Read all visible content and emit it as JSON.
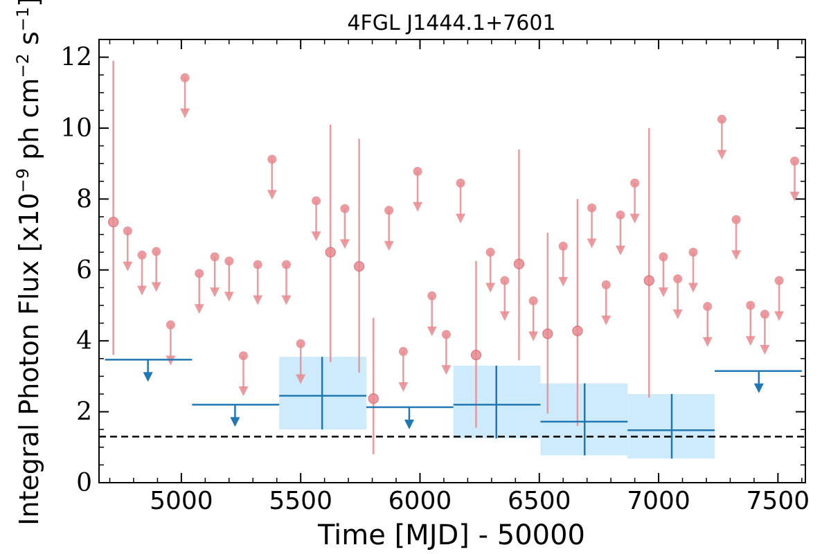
{
  "chart_data": {
    "type": "scatter",
    "title": "4FGL J1444.1+7601",
    "xlabel": "Time [MJD] - 50000",
    "ylabel": "Integral Photon Flux [x10^-9 ph cm^-2 s^-1]",
    "ylabel_parts": {
      "prefix": "Integral Photon Flux [x10",
      "exp1": "−9",
      "mid": " ph cm",
      "exp2": "−2",
      "mid2": " s",
      "exp3": "−1",
      "suffix": "]"
    },
    "xlim": [
      4655,
      7615
    ],
    "ylim": [
      0,
      12.5
    ],
    "xticks": [
      5000,
      5500,
      6000,
      6500,
      7000,
      7500
    ],
    "yticks": [
      0,
      2,
      4,
      6,
      8,
      10,
      12
    ],
    "grid": false,
    "reference_line": {
      "y": 1.3,
      "style": "dashed",
      "color": "#000000"
    },
    "colors": {
      "short_bins": "#e88a8f",
      "long_bins": "#1f77b4",
      "long_bins_band": "#cdebfb"
    },
    "series": [
      {
        "points": [
          {
            "x": 4715,
            "y": 7.35,
            "yerr_low": 3.6,
            "yerr_high": 11.9
          },
          {
            "x": 5625,
            "y": 6.5,
            "yerr_low": 3.4,
            "yerr_high": 10.1
          },
          {
            "x": 5745,
            "y": 6.1,
            "yerr_low": 3.1,
            "yerr_high": 9.7
          },
          {
            "x": 5805,
            "y": 2.37,
            "yerr_low": 0.8,
            "yerr_high": 4.65
          },
          {
            "x": 6235,
            "y": 3.6,
            "yerr_low": 1.55,
            "yerr_high": 6.25
          },
          {
            "x": 6415,
            "y": 6.17,
            "yerr_low": 3.45,
            "yerr_high": 9.4
          },
          {
            "x": 6535,
            "y": 4.2,
            "yerr_low": 1.95,
            "yerr_high": 7.05
          },
          {
            "x": 6660,
            "y": 4.28,
            "yerr_low": 1.6,
            "yerr_high": 8.0
          },
          {
            "x": 6960,
            "y": 5.7,
            "yerr_low": 2.4,
            "yerr_high": 10.0
          }
        ],
        "upper_limits": [
          {
            "x": 4775,
            "y": 7.1
          },
          {
            "x": 4835,
            "y": 6.42
          },
          {
            "x": 4895,
            "y": 6.52
          },
          {
            "x": 4955,
            "y": 4.45
          },
          {
            "x": 5015,
            "y": 11.42
          },
          {
            "x": 5075,
            "y": 5.9
          },
          {
            "x": 5140,
            "y": 6.37
          },
          {
            "x": 5200,
            "y": 6.25
          },
          {
            "x": 5260,
            "y": 3.58
          },
          {
            "x": 5320,
            "y": 6.15
          },
          {
            "x": 5380,
            "y": 9.12
          },
          {
            "x": 5440,
            "y": 6.15
          },
          {
            "x": 5500,
            "y": 3.92
          },
          {
            "x": 5565,
            "y": 7.95
          },
          {
            "x": 5685,
            "y": 7.73
          },
          {
            "x": 5870,
            "y": 7.68
          },
          {
            "x": 5930,
            "y": 3.7
          },
          {
            "x": 5990,
            "y": 8.78
          },
          {
            "x": 6050,
            "y": 5.27
          },
          {
            "x": 6110,
            "y": 4.18
          },
          {
            "x": 6170,
            "y": 8.45
          },
          {
            "x": 6295,
            "y": 6.5
          },
          {
            "x": 6355,
            "y": 5.7
          },
          {
            "x": 6475,
            "y": 5.13
          },
          {
            "x": 6600,
            "y": 6.67
          },
          {
            "x": 6720,
            "y": 7.75
          },
          {
            "x": 6780,
            "y": 5.58
          },
          {
            "x": 6840,
            "y": 7.55
          },
          {
            "x": 6900,
            "y": 8.45
          },
          {
            "x": 7020,
            "y": 6.37
          },
          {
            "x": 7080,
            "y": 5.75
          },
          {
            "x": 7145,
            "y": 6.5
          },
          {
            "x": 7205,
            "y": 4.97
          },
          {
            "x": 7265,
            "y": 10.25
          },
          {
            "x": 7325,
            "y": 7.42
          },
          {
            "x": 7385,
            "y": 5.0
          },
          {
            "x": 7445,
            "y": 4.75
          },
          {
            "x": 7505,
            "y": 5.7
          },
          {
            "x": 7570,
            "y": 9.07
          }
        ]
      },
      {
        "detections": [
          {
            "x": 5590,
            "x_low": 5410,
            "x_high": 5775,
            "y": 2.45,
            "y_low": 1.5,
            "y_high": 3.55
          },
          {
            "x": 6320,
            "x_low": 6140,
            "x_high": 6505,
            "y": 2.2,
            "y_low": 1.25,
            "y_high": 3.3
          },
          {
            "x": 6690,
            "x_low": 6505,
            "x_high": 6870,
            "y": 1.72,
            "y_low": 0.77,
            "y_high": 2.8
          },
          {
            "x": 7055,
            "x_low": 6870,
            "x_high": 7235,
            "y": 1.48,
            "y_low": 0.68,
            "y_high": 2.5
          }
        ],
        "upper_limits": [
          {
            "x": 4860,
            "x_low": 4680,
            "x_high": 5045,
            "y": 3.47
          },
          {
            "x": 5225,
            "x_low": 5045,
            "x_high": 5410,
            "y": 2.2
          },
          {
            "x": 5955,
            "x_low": 5775,
            "x_high": 6140,
            "y": 2.13
          },
          {
            "x": 7420,
            "x_low": 7235,
            "x_high": 7600,
            "y": 3.15
          }
        ]
      }
    ]
  }
}
